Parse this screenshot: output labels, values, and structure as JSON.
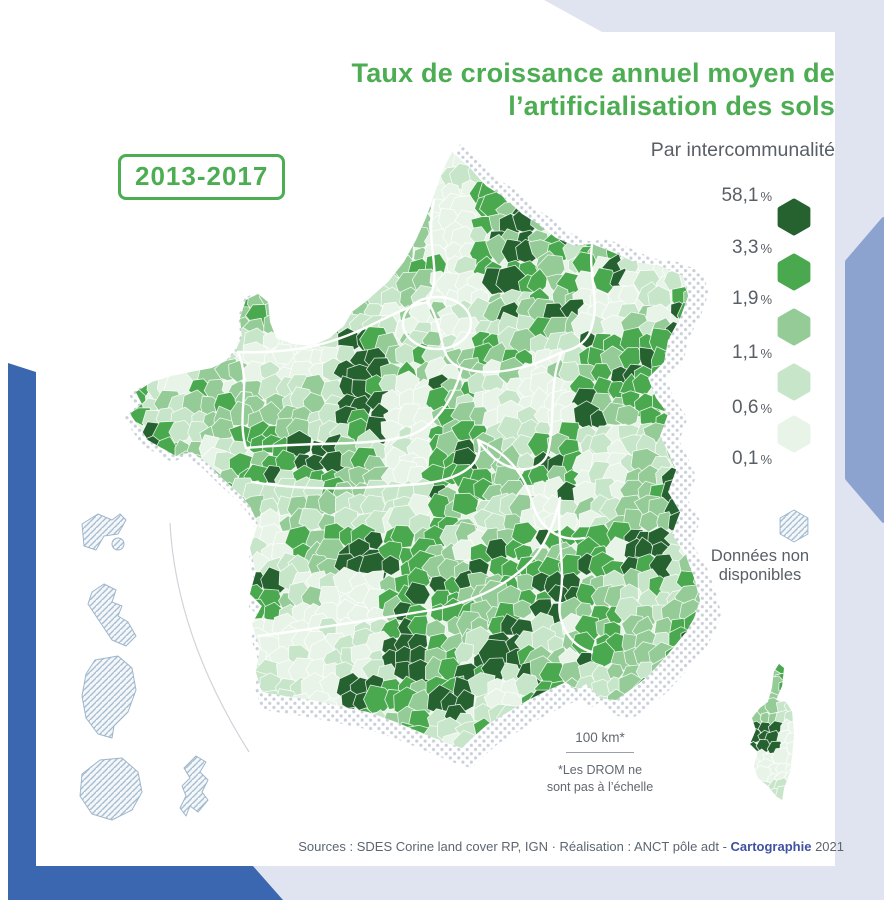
{
  "title": {
    "line1": "Taux de croissance annuel moyen de",
    "line2": "l’artificialisation des sols"
  },
  "subtitle": "Par intercommunalité",
  "period_badge": "2013-2017",
  "legend": {
    "percent_symbol": "%",
    "class_breaks": [
      "58,1",
      "3,3",
      "1,9",
      "1,1",
      "0,6",
      "0,1"
    ],
    "class_colors": [
      "#26622f",
      "#4aa94f",
      "#94cb96",
      "#c7e5c8",
      "#e9f4e8"
    ],
    "no_data_label_line1": "Données non",
    "no_data_label_line2": "disponibles"
  },
  "scale_bar": {
    "label": "100 km*",
    "note_line1": "*Les DROM ne",
    "note_line2": "sont pas à l’échelle"
  },
  "sources": {
    "prefix": "Sources : SDES Corine land cover RP, IGN · Réalisation : ANCT pôle adt - ",
    "brand": "Cartographie",
    "year": " 2021"
  },
  "map": {
    "type": "choropleth",
    "subject": "Taux de croissance annuel moyen de l’artificialisation des sols",
    "unit": "%",
    "period": "2013-2017",
    "granularity": "intercommunalité",
    "class_breaks_percent": [
      58.1,
      3.3,
      1.9,
      1.1,
      0.6,
      0.1
    ],
    "no_data_pattern": "hachures"
  },
  "colors": {
    "accent_green": "#4cad52",
    "text_gray": "#595f66",
    "lavender": "#e0e4f1",
    "periwinkle": "#8ca3cf",
    "frame_blue": "#3a67b0",
    "halo_dot": "#c9cfd9",
    "hatch": "#a7bdd0"
  }
}
